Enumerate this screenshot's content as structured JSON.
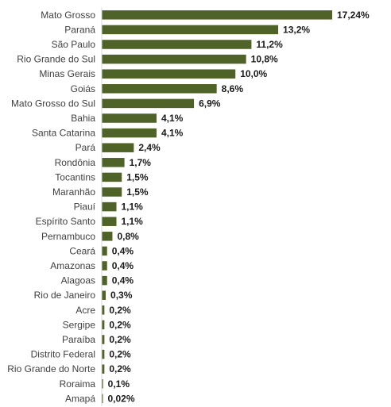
{
  "chart_data": {
    "type": "bar",
    "orientation": "horizontal",
    "bar_color": "#4f6228",
    "grid": false,
    "categories": [
      "Mato Grosso",
      "Paraná",
      "São Paulo",
      "Rio Grande do Sul",
      "Minas Gerais",
      "Goiás",
      "Mato Grosso do Sul",
      "Bahia",
      "Santa Catarina",
      "Pará",
      "Rondônia",
      "Tocantins",
      "Maranhão",
      "Piauí",
      "Espírito Santo",
      "Pernambuco",
      "Ceará",
      "Amazonas",
      "Alagoas",
      "Rio de Janeiro",
      "Acre",
      "Sergipe",
      "Paraíba",
      "Distrito Federal",
      "Rio Grande do Norte",
      "Roraima",
      "Amapá"
    ],
    "values": [
      17.24,
      13.2,
      11.2,
      10.8,
      10.0,
      8.6,
      6.9,
      4.1,
      4.1,
      2.4,
      1.7,
      1.5,
      1.5,
      1.1,
      1.1,
      0.8,
      0.4,
      0.4,
      0.4,
      0.3,
      0.2,
      0.2,
      0.2,
      0.2,
      0.2,
      0.1,
      0.02
    ],
    "value_labels": [
      "17,24%",
      "13,2%",
      "11,2%",
      "10,8%",
      "10,0%",
      "8,6%",
      "6,9%",
      "4,1%",
      "4,1%",
      "2,4%",
      "1,7%",
      "1,5%",
      "1,5%",
      "1,1%",
      "1,1%",
      "0,8%",
      "0,4%",
      "0,4%",
      "0,4%",
      "0,3%",
      "0,2%",
      "0,2%",
      "0,2%",
      "0,2%",
      "0,2%",
      "0,1%",
      "0,02%"
    ]
  }
}
